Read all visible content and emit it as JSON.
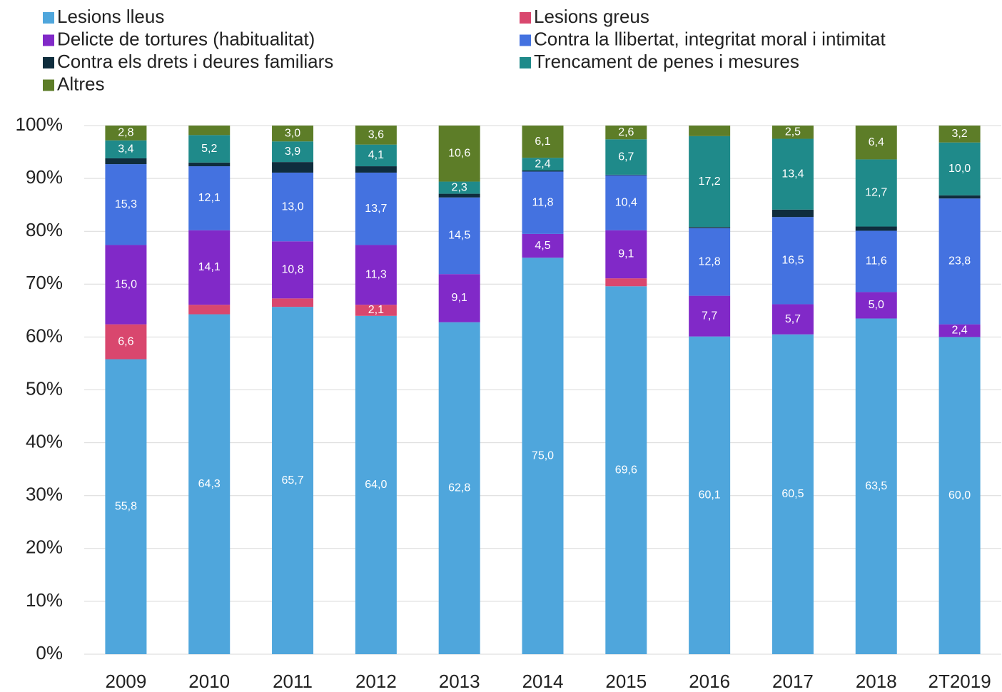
{
  "chart_data": {
    "type": "stacked_bar",
    "categories": [
      "2009",
      "2010",
      "2011",
      "2012",
      "2013",
      "2014",
      "2015",
      "2016",
      "2017",
      "2018",
      "2T2019"
    ],
    "series": [
      {
        "name": "Lesions lleus",
        "color": "#4fa6dc",
        "values": [
          55.8,
          64.3,
          65.7,
          64.0,
          62.8,
          75.0,
          69.6,
          60.1,
          60.5,
          63.5,
          60.0
        ],
        "value_labels": [
          "55,8",
          "64,3",
          "65,7",
          "64,0",
          "62,8",
          "75,0",
          "69,6",
          "60,1",
          "60,5",
          "63,5",
          "60,0"
        ]
      },
      {
        "name": "Lesions greus",
        "color": "#d9476e",
        "values": [
          6.6,
          1.8,
          1.6,
          2.1,
          0,
          0,
          1.5,
          0,
          0,
          0,
          0
        ],
        "value_labels": [
          "6,6",
          null,
          null,
          "2,1",
          null,
          null,
          null,
          null,
          null,
          null,
          null
        ]
      },
      {
        "name": "Delicte de tortures (habitualitat)",
        "color": "#8129c8",
        "values": [
          15.0,
          14.1,
          10.8,
          11.3,
          9.1,
          4.5,
          9.1,
          7.7,
          5.7,
          5.0,
          2.4
        ],
        "value_labels": [
          "15,0",
          "14,1",
          "10,8",
          "11,3",
          "9,1",
          "4,5",
          "9,1",
          "7,7",
          "5,7",
          "5,0",
          "2,4"
        ]
      },
      {
        "name": "Contra la llibertat, integritat moral i intimitat",
        "color": "#4472e0",
        "values": [
          15.3,
          12.1,
          13.0,
          13.7,
          14.5,
          11.8,
          10.4,
          12.8,
          16.5,
          11.6,
          23.8
        ],
        "value_labels": [
          "15,3",
          "12,1",
          "13,0",
          "13,7",
          "14,5",
          "11,8",
          "10,4",
          "12,8",
          "16,5",
          "11,6",
          "23,8"
        ]
      },
      {
        "name": "Contra els drets i deures familiars",
        "color": "#0f2d3d",
        "values": [
          1.1,
          0.7,
          2.0,
          1.2,
          0.7,
          0.2,
          0.1,
          0.2,
          1.4,
          0.8,
          0.6
        ],
        "value_labels": [
          null,
          null,
          null,
          null,
          null,
          null,
          null,
          null,
          null,
          null,
          null
        ]
      },
      {
        "name": "Trencament de penes i mesures",
        "color": "#1f8a8a",
        "values": [
          3.4,
          5.2,
          3.9,
          4.1,
          2.3,
          2.4,
          6.7,
          17.2,
          13.4,
          12.7,
          10.0
        ],
        "value_labels": [
          "3,4",
          "5,2",
          "3,9",
          "4,1",
          "2,3",
          "2,4",
          "6,7",
          "17,2",
          "13,4",
          "12,7",
          "10,0"
        ]
      },
      {
        "name": "Altres",
        "color": "#5d7d28",
        "values": [
          2.8,
          1.8,
          3.0,
          3.6,
          10.6,
          6.1,
          2.6,
          2.0,
          2.5,
          6.4,
          3.2
        ],
        "value_labels": [
          "2,8",
          null,
          "3,0",
          "3,6",
          "10,6",
          "6,1",
          "2,6",
          null,
          "2,5",
          "6,4",
          "3,2"
        ]
      }
    ],
    "ylim": [
      0,
      100
    ],
    "yticks": [
      {
        "value": 0,
        "label": "0%"
      },
      {
        "value": 10,
        "label": "10%"
      },
      {
        "value": 20,
        "label": "20%"
      },
      {
        "value": 30,
        "label": "30%"
      },
      {
        "value": 40,
        "label": "40%"
      },
      {
        "value": 50,
        "label": "50%"
      },
      {
        "value": 60,
        "label": "60%"
      },
      {
        "value": 70,
        "label": "70%"
      },
      {
        "value": 80,
        "label": "80%"
      },
      {
        "value": 90,
        "label": "90%"
      },
      {
        "value": 100,
        "label": "100%"
      }
    ],
    "grid": true
  }
}
